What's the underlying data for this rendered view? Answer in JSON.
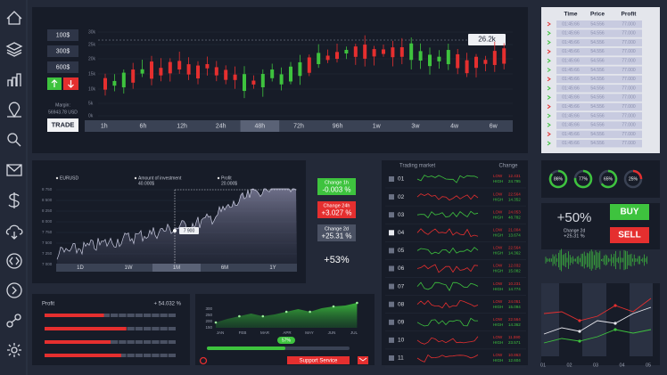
{
  "trade_panel": {
    "amounts": [
      "100$",
      "300$",
      "600$"
    ],
    "margin_label": "Margin:",
    "margin_value": "56943.78 USD",
    "trade_button": "TRADE",
    "y_labels": [
      "30k",
      "25k",
      "20k",
      "15k",
      "10k",
      "5k",
      "0k"
    ],
    "price_tag": "26.2k",
    "timeframes": [
      "1h",
      "6h",
      "12h",
      "24h",
      "48h",
      "72h",
      "96h",
      "1w",
      "3w",
      "4w",
      "6w"
    ]
  },
  "price_table": {
    "headers": [
      "Time",
      "Price",
      "Profit"
    ],
    "rows": [
      [
        "01:45:66",
        "54.556",
        "77.000"
      ],
      [
        "01:45:66",
        "54.556",
        "77.000"
      ],
      [
        "01:45:66",
        "54.556",
        "77.000"
      ],
      [
        "01:45:66",
        "54.556",
        "77.000"
      ],
      [
        "01:45:66",
        "54.556",
        "77.000"
      ],
      [
        "01:45:66",
        "54.556",
        "77.000"
      ],
      [
        "01:45:66",
        "54.556",
        "77.000"
      ],
      [
        "01:45:66",
        "54.556",
        "77.000"
      ],
      [
        "01:45:66",
        "54.556",
        "77.000"
      ],
      [
        "01:45:66",
        "54.556",
        "77.000"
      ],
      [
        "01:45:66",
        "54.556",
        "77.000"
      ],
      [
        "01:45:66",
        "54.556",
        "77.000"
      ],
      [
        "01:45:66",
        "54.556",
        "77.000"
      ],
      [
        "01:45:66",
        "54.556",
        "77.000"
      ]
    ]
  },
  "eurusd_panel": {
    "legend": [
      "EURUSD",
      "Amount of investment",
      "40.000$",
      "Profit",
      "20.000$"
    ],
    "y_labels": [
      "8 750",
      "8 500",
      "8 250",
      "8 000",
      "7 750",
      "7 500",
      "7 250",
      "7 000"
    ],
    "point_label": "7 900",
    "periods": [
      "1D",
      "1W",
      "1M",
      "6M",
      "1Y"
    ]
  },
  "changes": [
    {
      "label": "Change 1h",
      "value": "-0.003 %"
    },
    {
      "label": "Change 24h",
      "value": "+3.027 %"
    },
    {
      "label": "Change 2d",
      "value": "+25.31 %"
    }
  ],
  "total_change": "+53%",
  "market": {
    "title": "Trading market",
    "change_label": "Change",
    "low_label": "LOW",
    "high_label": "HIGH",
    "rows": [
      {
        "id": "01",
        "low": "12.431",
        "high": "24.795"
      },
      {
        "id": "02",
        "low": "22.564",
        "high": "14.352"
      },
      {
        "id": "03",
        "low": "24.053",
        "high": "48.782"
      },
      {
        "id": "04",
        "low": "21.004",
        "high": "13.674"
      },
      {
        "id": "05",
        "low": "22.564",
        "high": "14.362"
      },
      {
        "id": "06",
        "low": "12.032",
        "high": "15.082"
      },
      {
        "id": "07",
        "low": "10.231",
        "high": "14.774"
      },
      {
        "id": "08",
        "low": "24.051",
        "high": "15.094"
      },
      {
        "id": "09",
        "low": "22.564",
        "high": "14.362"
      },
      {
        "id": "10",
        "low": "11.590",
        "high": "23.571"
      },
      {
        "id": "11",
        "low": "10.863",
        "high": "12.604"
      }
    ]
  },
  "gauges": [
    {
      "value": 86,
      "label": "86%",
      "color": "#3ec33e"
    },
    {
      "value": 77,
      "label": "77%",
      "color": "#3ec33e"
    },
    {
      "value": 65,
      "label": "65%",
      "color": "#3ec33e"
    },
    {
      "value": 25,
      "label": "25%",
      "color": "#e52f2f"
    }
  ],
  "summary": {
    "value": "+50%",
    "label": "Change 2d",
    "sub_value": "+25.31 %"
  },
  "buy_button": "BUY",
  "sell_button": "SELL",
  "line_panel": {
    "x_labels": [
      "01",
      "02",
      "03",
      "04",
      "05"
    ]
  },
  "profit_panel": {
    "title": "Profit",
    "value": "+ 54.032 %"
  },
  "monthly_panel": {
    "y_labels": [
      "300",
      "250",
      "200",
      "150"
    ],
    "months": [
      "JAN",
      "FEB",
      "MAR",
      "APR",
      "MAY",
      "JUN",
      "JUL"
    ],
    "pill": "57%",
    "support": "Support Service"
  }
}
